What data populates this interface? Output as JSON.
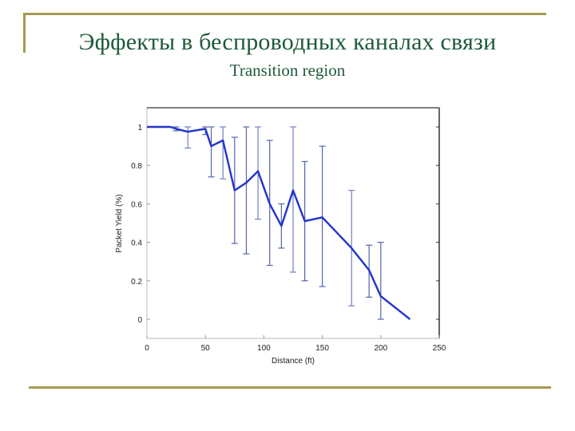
{
  "slide": {
    "title": "Эффекты в беспроводных каналах связи",
    "subtitle": "Transition region",
    "accent_color": "#a49b52",
    "title_color": "#1e5a3a"
  },
  "chart_data": {
    "type": "line",
    "title": "",
    "xlabel": "Distance (ft)",
    "ylabel": "Packet Yield (%)",
    "xlim": [
      0,
      250
    ],
    "ylim": [
      -0.1,
      1.1
    ],
    "xticks": [
      0,
      50,
      100,
      150,
      200,
      250
    ],
    "yticks": [
      0,
      0.2,
      0.4,
      0.6,
      0.8,
      1
    ],
    "xtick_labels": [
      "0",
      "50",
      "100",
      "150",
      "200",
      "250"
    ],
    "ytick_labels": [
      "0",
      "0.2",
      "0.4",
      "0.6",
      "0.8",
      "1"
    ],
    "grid": false,
    "legend": null,
    "line_color": "#2233cc",
    "series": [
      {
        "name": "Packet Yield",
        "x": [
          0,
          20,
          25,
          35,
          50,
          55,
          65,
          75,
          85,
          95,
          105,
          115,
          125,
          135,
          150,
          175,
          190,
          200,
          225
        ],
        "y": [
          1.0,
          1.0,
          0.99,
          0.975,
          0.99,
          0.9,
          0.93,
          0.67,
          0.71,
          0.77,
          0.6,
          0.485,
          0.67,
          0.51,
          0.53,
          0.37,
          0.255,
          0.12,
          0.0
        ]
      }
    ],
    "error_bars": [
      {
        "x": 25,
        "low": 0.98,
        "high": 1.0
      },
      {
        "x": 35,
        "low": 0.89,
        "high": 1.0
      },
      {
        "x": 50,
        "low": 0.96,
        "high": 1.0
      },
      {
        "x": 55,
        "low": 0.74,
        "high": 1.0
      },
      {
        "x": 65,
        "low": 0.73,
        "high": 1.0
      },
      {
        "x": 75,
        "low": 0.394,
        "high": 0.946
      },
      {
        "x": 85,
        "low": 0.34,
        "high": 1.0
      },
      {
        "x": 95,
        "low": 0.52,
        "high": 1.0
      },
      {
        "x": 105,
        "low": 0.28,
        "high": 0.93
      },
      {
        "x": 115,
        "low": 0.37,
        "high": 0.6
      },
      {
        "x": 125,
        "low": 0.245,
        "high": 1.0
      },
      {
        "x": 135,
        "low": 0.2,
        "high": 0.82
      },
      {
        "x": 150,
        "low": 0.17,
        "high": 0.9
      },
      {
        "x": 175,
        "low": 0.07,
        "high": 0.67
      },
      {
        "x": 190,
        "low": 0.115,
        "high": 0.385
      },
      {
        "x": 200,
        "low": 0.0,
        "high": 0.4
      }
    ]
  }
}
